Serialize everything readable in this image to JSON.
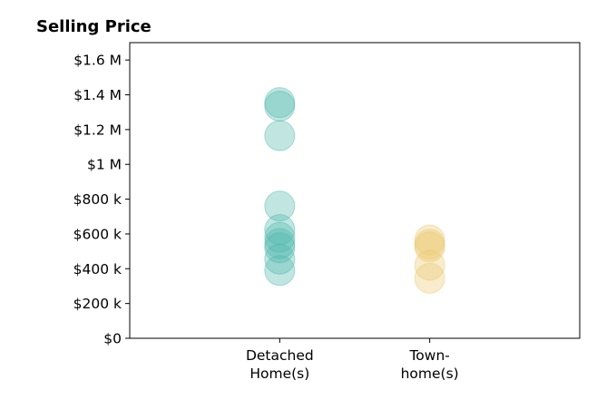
{
  "chart_data": {
    "type": "scatter",
    "title": "Selling Price",
    "xlabel": "",
    "ylabel": "",
    "categories": [
      [
        "Detached",
        "Home(s)"
      ],
      [
        "Town-",
        "home(s)"
      ]
    ],
    "yticks": [
      {
        "value": 0,
        "label": "$0"
      },
      {
        "value": 200000,
        "label": "$200 k"
      },
      {
        "value": 400000,
        "label": "$400 k"
      },
      {
        "value": 600000,
        "label": "$600 k"
      },
      {
        "value": 800000,
        "label": "$800 k"
      },
      {
        "value": 1000000,
        "label": "$1 M"
      },
      {
        "value": 1200000,
        "label": "$1.2 M"
      },
      {
        "value": 1400000,
        "label": "$1.4 M"
      },
      {
        "value": 1600000,
        "label": "$1.6 M"
      }
    ],
    "xlim": [
      -1,
      2
    ],
    "ylim": [
      0,
      1700000
    ],
    "grid": false,
    "series": [
      {
        "category_index": 0,
        "color": "#4db6ac",
        "values": [
          1355000,
          1335000,
          1165000,
          760000,
          625000,
          580000,
          545000,
          520000,
          455000,
          390000
        ]
      },
      {
        "category_index": 1,
        "color": "#ebc86e",
        "values": [
          565000,
          540000,
          525000,
          420000,
          345000
        ]
      }
    ]
  }
}
